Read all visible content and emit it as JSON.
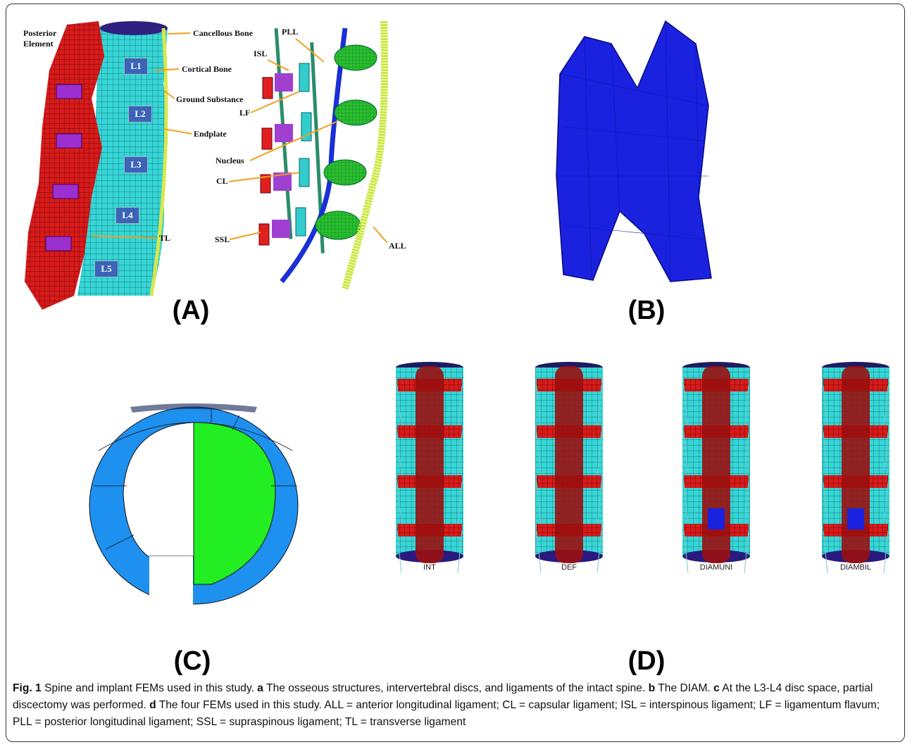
{
  "panels": [
    {
      "label": "(A)",
      "annotations": [
        "Posterior Element",
        "Cancellous Bone",
        "Cortical Bone",
        "Ground Substance",
        "Endplate",
        "TL",
        "PLL",
        "ISL",
        "LF",
        "Nucleus",
        "CL",
        "SSL",
        "ALL"
      ],
      "levels": [
        "L1",
        "L2",
        "L3",
        "L4",
        "L5"
      ]
    },
    {
      "label": "(B)"
    },
    {
      "label": "(C)"
    },
    {
      "label": "(D)",
      "models": [
        "INT",
        "DEF",
        "DIAMUNI",
        "DIAMBIL"
      ]
    }
  ],
  "caption": {
    "figure": "Fig. 1",
    "lead": "Spine and implant FEMs used in this study.",
    "items": [
      {
        "letter": "a",
        "text": "The osseous structures, intervertebral discs, and ligaments of the intact spine."
      },
      {
        "letter": "b",
        "text": "The DIAM."
      },
      {
        "letter": "c",
        "text": "At the L3-L4 disc space, partial discectomy was performed."
      },
      {
        "letter": "d",
        "text": "The four FEMs used in this study. ALL = anterior longitudinal ligament; CL = capsular ligament; ISL = interspinous ligament; LF = ligamentum flavum; PLL = posterior longitudinal ligament; SSL = supraspinous ligament; TL = transverse ligament"
      }
    ]
  }
}
